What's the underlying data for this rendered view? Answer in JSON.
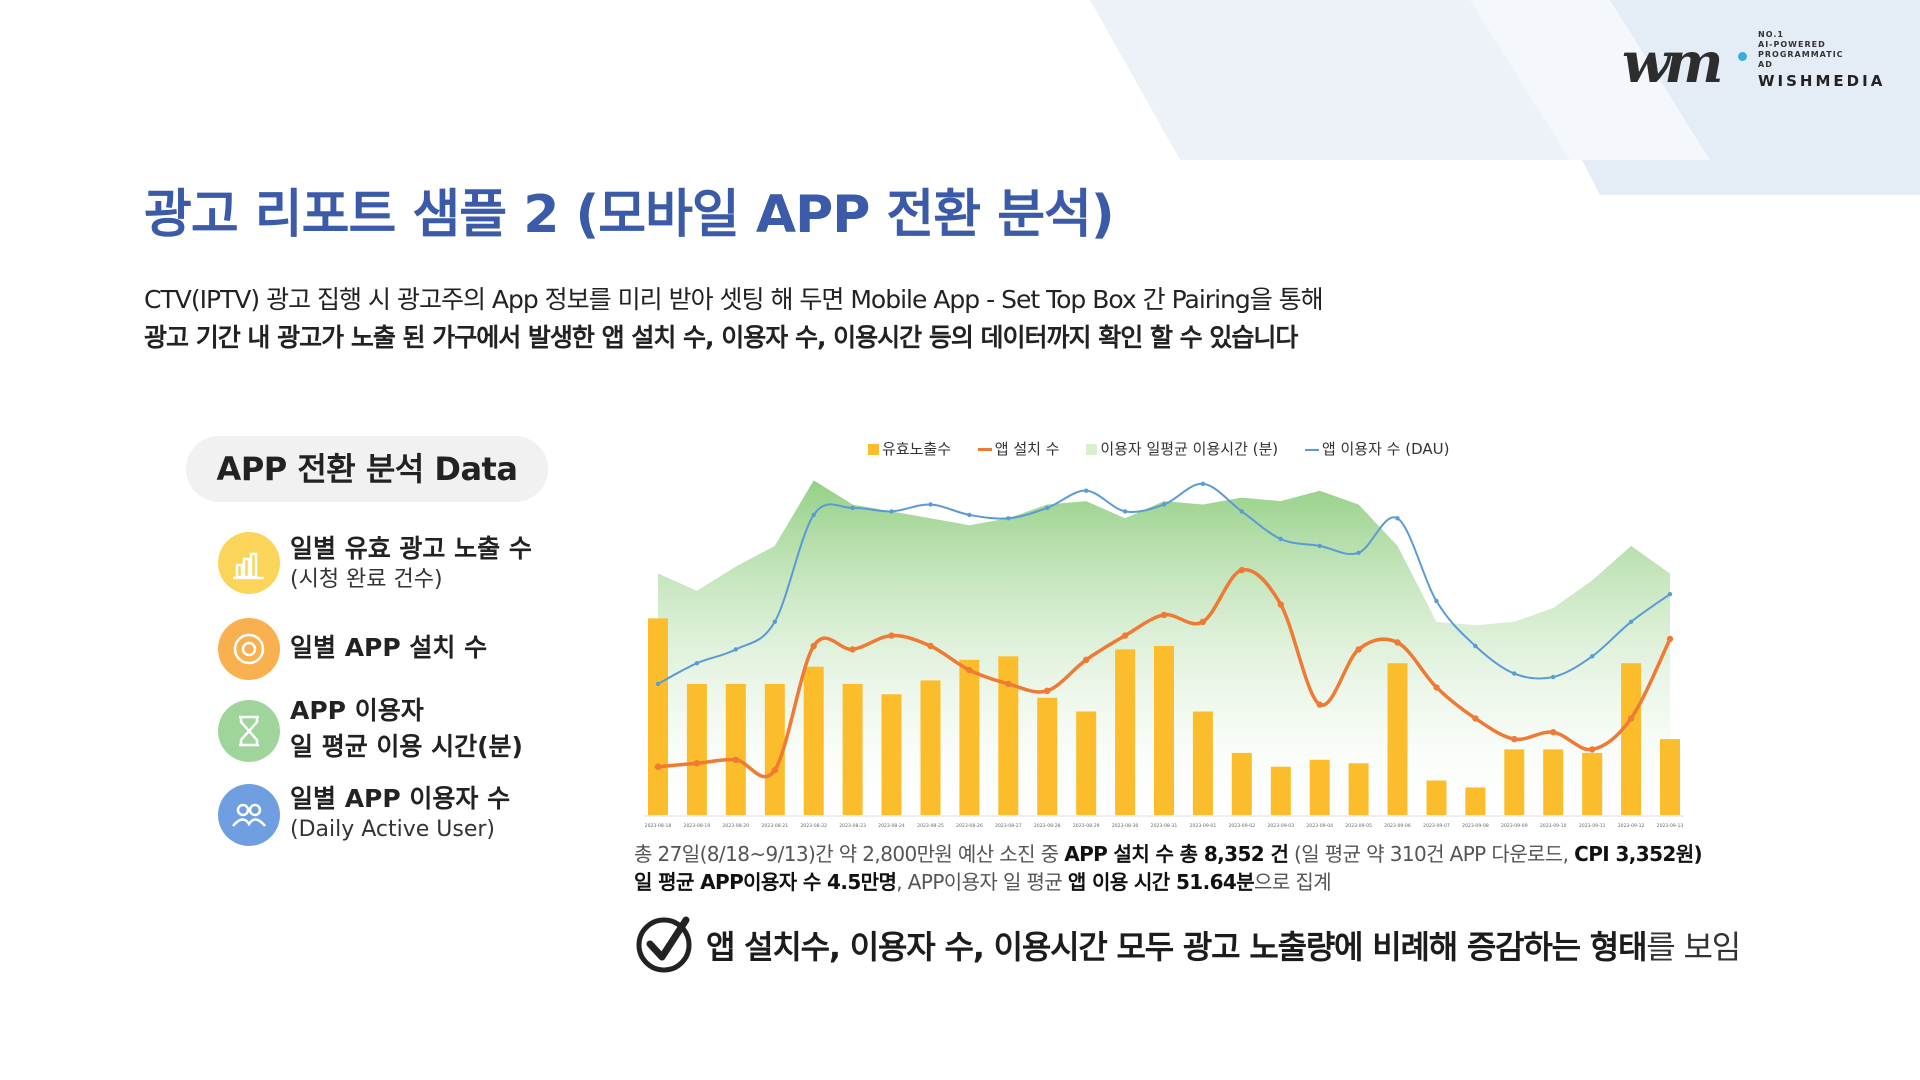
{
  "brand": {
    "logo_text": "wm",
    "tagline_lines": [
      "NO.1",
      "AI-POWERED",
      "PROGRAMMATIC",
      "AD"
    ],
    "name": "WISHMEDIA"
  },
  "title": "광고 리포트 샘플 2 (모바일 APP 전환 분석)",
  "description": {
    "line1": "CTV(IPTV) 광고 집행 시 광고주의 App 정보를 미리 받아 셋팅 해 두면 Mobile App - Set Top Box 간 Pairing을 통해",
    "line2": "광고 기간 내 광고가 노출 된 가구에서 발생한 앱 설치 수, 이용자 수, 이용시간 등의 데이터까지 확인 할 수 있습니다"
  },
  "section_title": "APP 전환 분석 Data",
  "legend_items": [
    {
      "label": "일별 유효 광고 노출 수",
      "sub": "(시청 완료 건수)",
      "icon": "bar-chart-icon",
      "color": "#fbd45a"
    },
    {
      "label": "일별 APP 설치 수",
      "sub": "",
      "icon": "target-icon",
      "color": "#f9b04e"
    },
    {
      "label": "APP 이용자",
      "sub": "일 평균 이용 시간(분)",
      "icon": "hourglass-icon",
      "color": "#9fd59a"
    },
    {
      "label": "일별 APP 이용자 수",
      "sub": "(Daily Active User)",
      "icon": "users-icon",
      "color": "#6f9fe0"
    }
  ],
  "colors": {
    "title": "#3b5aa8",
    "bar": "#fbbd2b",
    "install_line": "#ee7a33",
    "time_area": "#8fcd7f",
    "dau_line": "#5a9bd5"
  },
  "chart_data": {
    "type": "bar",
    "legend": [
      "유효노출수",
      "앱 설치 수",
      "이용자 일평균 이용시간 (분)",
      "앱 이용자 수 (DAU)"
    ],
    "legend_position": "top",
    "categories": [
      "2023-08-18",
      "2023-08-19",
      "2023-08-20",
      "2023-08-21",
      "2023-08-22",
      "2023-08-23",
      "2023-08-24",
      "2023-08-25",
      "2023-08-26",
      "2023-08-27",
      "2023-08-28",
      "2023-08-29",
      "2023-08-30",
      "2023-08-31",
      "2023-09-01",
      "2023-09-02",
      "2023-09-03",
      "2023-09-04",
      "2023-09-05",
      "2023-09-06",
      "2023-09-07",
      "2023-09-08",
      "2023-09-09",
      "2023-09-10",
      "2023-09-11",
      "2023-09-12",
      "2023-09-13"
    ],
    "series": [
      {
        "name": "유효노출수",
        "kind": "bar",
        "values": [
          57,
          38,
          38,
          38,
          43,
          38,
          35,
          39,
          45,
          46,
          34,
          30,
          48,
          49,
          30,
          18,
          14,
          16,
          15,
          44,
          10,
          8,
          19,
          19,
          18,
          44,
          22
        ]
      },
      {
        "name": "앱 설치 수",
        "kind": "line",
        "values": [
          14,
          15,
          16,
          13,
          49,
          48,
          52,
          49,
          42,
          38,
          36,
          45,
          52,
          58,
          56,
          71,
          61,
          32,
          48,
          50,
          37,
          28,
          22,
          24,
          19,
          28,
          51
        ]
      },
      {
        "name": "이용자 일평균 이용시간 (분)",
        "kind": "area",
        "values": [
          70,
          65,
          72,
          78,
          97,
          90,
          88,
          86,
          84,
          86,
          90,
          91,
          86,
          91,
          90,
          92,
          91,
          94,
          90,
          78,
          56,
          55,
          56,
          60,
          68,
          78,
          70
        ]
      },
      {
        "name": "앱 이용자 수 (DAU)",
        "kind": "line",
        "values": [
          38,
          44,
          48,
          56,
          87,
          89,
          88,
          90,
          87,
          86,
          89,
          94,
          88,
          90,
          96,
          88,
          80,
          78,
          76,
          86,
          62,
          49,
          41,
          40,
          46,
          56,
          64
        ]
      }
    ],
    "ylim": [
      0,
      100
    ],
    "grid": false
  },
  "summary": {
    "line1_parts": [
      {
        "t": "총 27일(8/18~9/13)간 약 2,800만원 예산 소진 중 ",
        "b": false
      },
      {
        "t": "APP 설치 수 총 8,352 건",
        "b": true
      },
      {
        "t": " (일 평균 약 310건 APP 다운로드, ",
        "b": false
      },
      {
        "t": "CPI 3,352원)",
        "b": true
      }
    ],
    "line2_parts": [
      {
        "t": "일 평균 APP이용자 수 4.5만명",
        "b": true
      },
      {
        "t": ", APP이용자 일 평균 ",
        "b": false
      },
      {
        "t": "앱 이용 시간 51.64분",
        "b": true
      },
      {
        "t": "으로 집계",
        "b": false
      }
    ]
  },
  "conclusion": {
    "main": "앱 설치수, 이용자 수, 이용시간 모두 광고 노출량에 비례해 증감하는 형태",
    "tail": "를 보임"
  }
}
